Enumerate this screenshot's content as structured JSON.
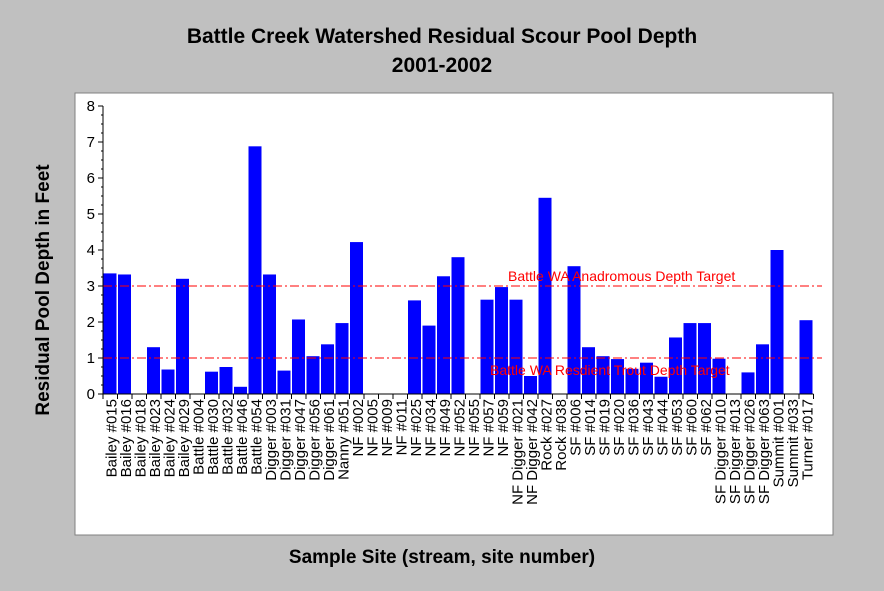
{
  "chart_data": {
    "type": "bar",
    "title": "Battle Creek Watershed Residual Scour Pool Depth",
    "subtitle": "2001-2002",
    "xlabel": "Sample Site (stream, site number)",
    "ylabel": "Residual Pool Depth in Feet",
    "ylim": [
      0,
      8
    ],
    "yticks": [
      "0",
      "1",
      "2",
      "3",
      "4",
      "5",
      "6",
      "7",
      "8"
    ],
    "grid": false,
    "bar_color": "#0000ff",
    "categories": [
      "Bailey #015",
      "Bailey #016",
      "Bailey #018",
      "Bailey #023",
      "Bailey #024",
      "Bailey #029",
      "Battle #004",
      "Battle #030",
      "Battle #032",
      "Battle #046",
      "Battle #054",
      "Digger #003",
      "Digger #031",
      "Digger #047",
      "Digger #056",
      "Digger #061",
      "Nanny #051",
      "NF #002",
      "NF #005",
      "NF #009",
      "NF #011",
      "NF #025",
      "NF #034",
      "NF #049",
      "NF #052",
      "NF #055",
      "NF #057",
      "NF #059",
      "NF Digger #021",
      "NF Digger #042",
      "Rock #027",
      "Rock #038",
      "SF #006",
      "SF #014",
      "SF #019",
      "SF #020",
      "SF #036",
      "SF #043",
      "SF #044",
      "SF #053",
      "SF #060",
      "SF #062",
      "SF Digger #010",
      "SF Digger #013",
      "SF Digger #026",
      "SF Digger #063",
      "Summit #001",
      "Summit #033",
      "Turner #017"
    ],
    "values": [
      3.35,
      3.32,
      0,
      1.3,
      0.68,
      3.2,
      0,
      0.62,
      0.75,
      0.2,
      6.88,
      3.32,
      0.65,
      2.07,
      1.05,
      1.38,
      1.97,
      4.22,
      0,
      0,
      0,
      2.6,
      1.9,
      3.27,
      3.8,
      0,
      2.62,
      2.97,
      2.62,
      0.5,
      5.45,
      0,
      3.55,
      1.3,
      1.05,
      0.97,
      0.7,
      0.87,
      0.48,
      1.57,
      1.97,
      1.97,
      0.98,
      0,
      0.6,
      1.38,
      4.0,
      0,
      2.05
    ],
    "reference_lines": [
      {
        "label": "Battle WA Anadromous Depth Target",
        "y": 3,
        "color": "#ff0000"
      },
      {
        "label": "Battle WA Resdient Trout Depth Target",
        "y": 1,
        "color": "#ff0000"
      }
    ]
  }
}
